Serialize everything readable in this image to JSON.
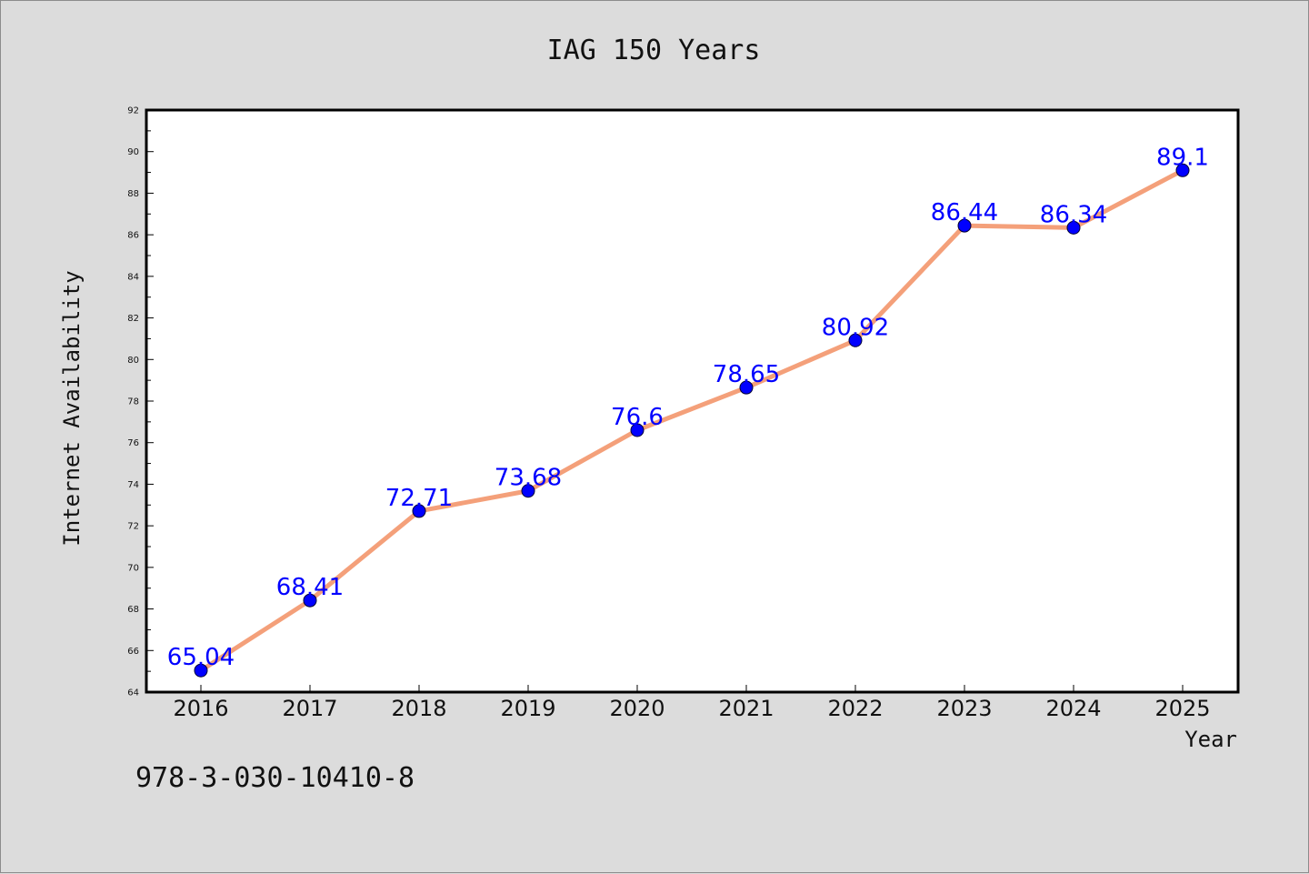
{
  "chart_data": {
    "type": "line",
    "title": "IAG 150 Years",
    "xlabel": "Year",
    "ylabel": "Internet Availability",
    "categories": [
      "2016",
      "2017",
      "2018",
      "2019",
      "2020",
      "2021",
      "2022",
      "2023",
      "2024",
      "2025"
    ],
    "values": [
      65.04,
      68.41,
      72.71,
      73.68,
      76.6,
      78.65,
      80.92,
      86.44,
      86.34,
      89.1
    ],
    "data_labels": [
      "65.04",
      "68.41",
      "72.71",
      "73.68",
      "76.6",
      "78.65",
      "80.92",
      "86.44",
      "86.34",
      "89.1"
    ],
    "ylim": [
      64,
      92
    ],
    "yticks": [
      64,
      66,
      68,
      70,
      72,
      74,
      76,
      78,
      80,
      82,
      84,
      86,
      88,
      90,
      92
    ],
    "grid": false,
    "line_color": "#f4a07a",
    "marker_color": "#0000ff",
    "label_color": "#0000ff"
  },
  "footer": {
    "isbn": "978-3-030-10410-8"
  }
}
